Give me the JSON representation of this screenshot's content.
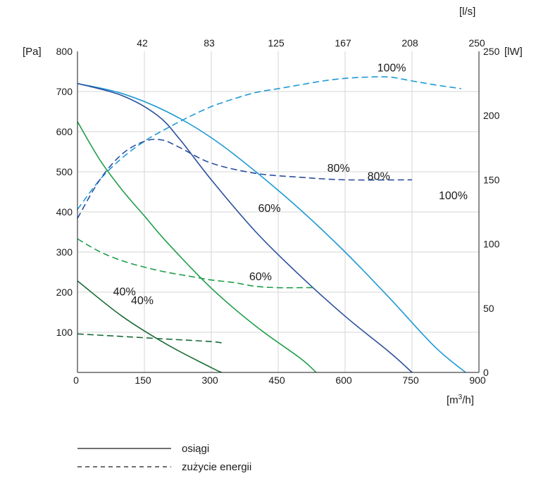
{
  "chart_data": {
    "type": "line",
    "axes": {
      "x_bottom": {
        "unit": "[m³/h]",
        "unit_base": "[m",
        "unit_sup": "3",
        "unit_tail": "/h]",
        "range": [
          0,
          900
        ],
        "ticks": [
          0,
          150,
          300,
          450,
          600,
          750,
          900
        ],
        "tick_labels": [
          "0",
          "150",
          "300",
          "450",
          "600",
          "750",
          "900"
        ]
      },
      "x_top": {
        "unit": "[l/s]",
        "tick_labels": [
          "42",
          "83",
          "125",
          "167",
          "208",
          "250"
        ],
        "tick_values_m3h": [
          150,
          300,
          450,
          600,
          750,
          900
        ]
      },
      "y_left": {
        "unit": "[Pa]",
        "range": [
          0,
          800
        ],
        "ticks": [
          100,
          200,
          300,
          400,
          500,
          600,
          700,
          800
        ],
        "tick_labels": [
          "100",
          "200",
          "300",
          "400",
          "500",
          "600",
          "700",
          "800"
        ]
      },
      "y_right": {
        "unit": "[lW]",
        "range": [
          0,
          250
        ],
        "ticks": [
          0,
          50,
          100,
          150,
          200,
          250
        ],
        "tick_labels": [
          "0",
          "50",
          "100",
          "150",
          "200",
          "250"
        ]
      }
    },
    "grid": true,
    "series": [
      {
        "label": "100%",
        "kind": "performance",
        "axis": "left",
        "color": "#1e9ad6",
        "x": [
          0,
          100,
          200,
          300,
          400,
          500,
          600,
          700,
          800,
          870
        ],
        "y": [
          720,
          695,
          650,
          585,
          500,
          405,
          300,
          185,
          65,
          0
        ]
      },
      {
        "label": "80%",
        "kind": "performance",
        "axis": "left",
        "color": "#2b4f9e",
        "x": [
          0,
          100,
          180,
          230,
          300,
          400,
          500,
          600,
          700,
          750
        ],
        "y": [
          720,
          690,
          640,
          580,
          480,
          350,
          240,
          140,
          50,
          0
        ]
      },
      {
        "label": "60%",
        "kind": "performance",
        "axis": "left",
        "color": "#1f9e4a",
        "x": [
          0,
          50,
          100,
          150,
          200,
          300,
          400,
          500,
          535
        ],
        "y": [
          625,
          530,
          455,
          390,
          325,
          210,
          115,
          35,
          0
        ]
      },
      {
        "label": "40%",
        "kind": "performance",
        "axis": "left",
        "color": "#1a6b37",
        "x": [
          0,
          100,
          200,
          300,
          323
        ],
        "y": [
          228,
          140,
          70,
          12,
          0
        ]
      },
      {
        "label": "100%",
        "kind": "power",
        "axis": "right",
        "color": "#1e9ad6",
        "x": [
          0,
          50,
          100,
          150,
          200,
          250,
          300,
          350,
          400,
          450,
          500,
          550,
          600,
          650,
          700,
          750,
          800,
          860
        ],
        "y": [
          127,
          150,
          167,
          180,
          190,
          199,
          207,
          213,
          218,
          221,
          224,
          227,
          229,
          230,
          230,
          227,
          224,
          221
        ]
      },
      {
        "label": "80%",
        "kind": "power",
        "axis": "right",
        "color": "#2b4f9e",
        "x": [
          0,
          50,
          100,
          150,
          190,
          230,
          300,
          400,
          500,
          600,
          750
        ],
        "y": [
          120,
          150,
          170,
          180,
          181,
          175,
          163,
          155,
          152,
          150,
          150
        ]
      },
      {
        "label": "60%",
        "kind": "power",
        "axis": "right",
        "color": "#1f9e4a",
        "x": [
          0,
          50,
          100,
          150,
          200,
          250,
          300,
          350,
          400,
          450,
          500,
          535
        ],
        "y": [
          104,
          94,
          87,
          82,
          78,
          75,
          72,
          70,
          67,
          66,
          66,
          66
        ]
      },
      {
        "label": "40%",
        "kind": "power",
        "axis": "right",
        "color": "#1a6b37",
        "x": [
          0,
          100,
          200,
          300,
          323
        ],
        "y": [
          30,
          28,
          26,
          24,
          23
        ]
      }
    ],
    "annotations": [
      {
        "text": "100%",
        "x": 672,
        "y": 750
      },
      {
        "text": "80%",
        "x": 560,
        "y": 500
      },
      {
        "text": "60%",
        "x": 385,
        "y": 230
      },
      {
        "text": "40%",
        "x": 120,
        "y": 170
      },
      {
        "text": "100%",
        "x": 810,
        "y": 135
      },
      {
        "text": "80%",
        "x": 650,
        "y": 150
      },
      {
        "text": "60%",
        "x": 405,
        "y": 125
      },
      {
        "text": "40%",
        "x": 80,
        "y": 60
      }
    ],
    "legend": {
      "placement": "bottom-left",
      "items": [
        {
          "text": "osiągi",
          "style": "solid"
        },
        {
          "text": "zużycie energii",
          "style": "dashed"
        }
      ]
    }
  }
}
